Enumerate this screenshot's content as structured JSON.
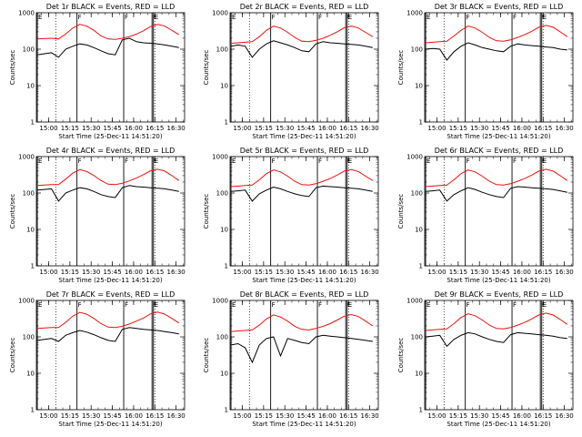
{
  "chart_data": {
    "type": "line",
    "x_unit": "time of day (25-Dec-11)",
    "x_ticks": [
      "15:00",
      "15:15",
      "15:30",
      "15:45",
      "16:00",
      "16:15",
      "16:30"
    ],
    "xlim": [
      "14:51:20",
      "16:36:00"
    ],
    "xlabel": "Start Time (25-Dec-11 14:51:20)",
    "ylabel": "Counts/sec",
    "y_scale": "log",
    "ylim": [
      1,
      1000
    ],
    "y_ticks": [
      "1",
      "10",
      "100",
      "1000"
    ],
    "series_colors": {
      "events": "#000000",
      "lld": "#ee1111"
    },
    "markers": {
      "E": "14:52",
      "F": [
        "15:20",
        "15:53",
        "16:13"
      ],
      "E_end": "16:14"
    },
    "dotted_lines": [
      "15:05",
      "16:15"
    ],
    "x": [
      "14:52",
      "14:57",
      "15:02",
      "15:07",
      "15:12",
      "15:17",
      "15:22",
      "15:27",
      "15:32",
      "15:37",
      "15:42",
      "15:47",
      "15:52",
      "15:57",
      "16:02",
      "16:07",
      "16:12",
      "16:17",
      "16:22",
      "16:27",
      "16:32"
    ],
    "panels": [
      {
        "title": "Det 1r BLACK = Events, RED = LLD",
        "events": [
          70,
          75,
          80,
          60,
          100,
          120,
          140,
          130,
          110,
          90,
          75,
          70,
          180,
          200,
          160,
          150,
          145,
          140,
          130,
          120,
          110
        ],
        "lld": [
          190,
          195,
          200,
          190,
          260,
          380,
          480,
          430,
          330,
          230,
          190,
          185,
          200,
          220,
          260,
          320,
          420,
          480,
          430,
          330,
          250
        ]
      },
      {
        "title": "Det 2r BLACK = Events, RED = LLD",
        "events": [
          120,
          130,
          120,
          60,
          100,
          140,
          170,
          150,
          130,
          110,
          90,
          85,
          140,
          160,
          150,
          145,
          140,
          135,
          130,
          120,
          110
        ],
        "lld": [
          145,
          150,
          155,
          160,
          220,
          330,
          430,
          380,
          290,
          210,
          165,
          160,
          175,
          200,
          240,
          300,
          390,
          430,
          380,
          290,
          220
        ]
      },
      {
        "title": "Det 3r BLACK = Events, RED = LLD",
        "events": [
          100,
          105,
          100,
          50,
          85,
          120,
          150,
          130,
          110,
          100,
          90,
          85,
          120,
          140,
          130,
          125,
          120,
          115,
          110,
          100,
          95
        ],
        "lld": [
          150,
          155,
          160,
          165,
          230,
          330,
          430,
          380,
          290,
          210,
          170,
          165,
          180,
          210,
          250,
          310,
          400,
          450,
          400,
          300,
          220
        ]
      },
      {
        "title": "Det 4r BLACK = Events, RED = LLD",
        "events": [
          120,
          125,
          130,
          60,
          100,
          120,
          140,
          130,
          110,
          90,
          80,
          75,
          140,
          160,
          150,
          145,
          140,
          135,
          130,
          120,
          110
        ],
        "lld": [
          160,
          165,
          170,
          170,
          240,
          350,
          440,
          390,
          300,
          220,
          175,
          170,
          185,
          215,
          260,
          320,
          410,
          450,
          400,
          300,
          220
        ]
      },
      {
        "title": "Det 5r BLACK = Events, RED = LLD",
        "events": [
          110,
          115,
          120,
          60,
          95,
          120,
          145,
          130,
          110,
          95,
          85,
          80,
          140,
          155,
          150,
          145,
          140,
          135,
          130,
          120,
          110
        ],
        "lld": [
          150,
          155,
          160,
          165,
          230,
          340,
          430,
          380,
          290,
          210,
          170,
          165,
          180,
          210,
          250,
          310,
          400,
          440,
          390,
          290,
          220
        ]
      },
      {
        "title": "Det 6r BLACK = Events, RED = LLD",
        "events": [
          110,
          115,
          120,
          60,
          90,
          115,
          140,
          125,
          105,
          90,
          80,
          75,
          135,
          150,
          145,
          140,
          135,
          130,
          125,
          115,
          105
        ],
        "lld": [
          150,
          155,
          160,
          165,
          230,
          340,
          430,
          380,
          290,
          210,
          170,
          165,
          180,
          210,
          250,
          310,
          400,
          450,
          400,
          300,
          220
        ]
      },
      {
        "title": "Det 7r BLACK = Events, RED = LLD",
        "events": [
          80,
          85,
          90,
          75,
          110,
          130,
          150,
          135,
          115,
          95,
          80,
          75,
          160,
          180,
          170,
          160,
          155,
          150,
          140,
          130,
          120
        ],
        "lld": [
          170,
          175,
          180,
          180,
          250,
          370,
          470,
          420,
          320,
          230,
          185,
          180,
          195,
          225,
          270,
          330,
          430,
          480,
          420,
          320,
          240
        ]
      },
      {
        "title": "Det 8r BLACK = Events, RED = LLD",
        "events": [
          60,
          65,
          50,
          20,
          60,
          90,
          100,
          30,
          90,
          80,
          70,
          65,
          100,
          110,
          105,
          100,
          95,
          90,
          85,
          80,
          75
        ],
        "lld": [
          140,
          145,
          150,
          155,
          210,
          310,
          400,
          350,
          270,
          195,
          160,
          155,
          170,
          195,
          230,
          290,
          370,
          410,
          360,
          270,
          200
        ]
      },
      {
        "title": "Det 9r BLACK = Events, RED = LLD",
        "events": [
          100,
          105,
          110,
          55,
          85,
          110,
          130,
          120,
          100,
          85,
          75,
          70,
          115,
          130,
          125,
          120,
          115,
          110,
          105,
          95,
          90
        ],
        "lld": [
          150,
          155,
          160,
          165,
          230,
          340,
          430,
          380,
          290,
          210,
          170,
          165,
          180,
          210,
          250,
          310,
          400,
          450,
          400,
          300,
          220
        ]
      }
    ]
  }
}
